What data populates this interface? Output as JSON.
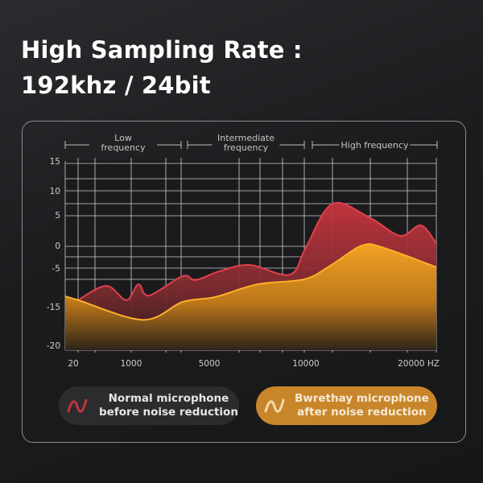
{
  "title_line1": "High Sampling Rate :",
  "title_line2": "192khz / 24bit",
  "chart_data": {
    "type": "area",
    "title": "",
    "xlabel": "",
    "ylabel": "",
    "x_unit": "HZ",
    "x_ticks": [
      20,
      1000,
      5000,
      10000,
      20000
    ],
    "x_tick_labels": [
      "20",
      "1000",
      "5000",
      "10000",
      "20000 HZ"
    ],
    "y_ticks": [
      15,
      10,
      5,
      0,
      -5,
      -15,
      -20
    ],
    "y_tick_labels": [
      "15",
      "10",
      "5",
      "0",
      "-5",
      "-15",
      "-20"
    ],
    "ylim": [
      -21,
      15
    ],
    "grid": true,
    "legend_position": "bottom",
    "regions": [
      {
        "label": "Low frequency",
        "lines": [
          "Low",
          "frequency"
        ]
      },
      {
        "label": "Intermediate frequency",
        "lines": [
          "Intermediate",
          "frequency"
        ]
      },
      {
        "label": "High frequency",
        "lines": [
          "High frequency"
        ]
      }
    ],
    "series": [
      {
        "name": "Normal microphone before noise reduction",
        "color": "#c0343f",
        "x": [
          20,
          540,
          911,
          1390,
          1957,
          3780,
          4480,
          5730,
          7240,
          9270,
          10160,
          12730,
          16400,
          19300,
          20940,
          22000
        ],
        "y": [
          -13.3,
          -9.6,
          -13.3,
          -9.2,
          -12.1,
          -7.1,
          -8.1,
          -5.8,
          -4.3,
          -6.7,
          -0.4,
          7.3,
          4.5,
          1.6,
          3.3,
          0.3
        ]
      },
      {
        "name": "Bwrethay microphone after noise reduction",
        "color": "#f4a524",
        "x": [
          0,
          20,
          1650,
          3780,
          5490,
          7640,
          10000,
          12500,
          15600,
          17700,
          22000
        ],
        "y": [
          -12.3,
          -13.3,
          -16.7,
          -13.75,
          -12.5,
          -9.2,
          -7.9,
          -4.5,
          0,
          -0.5,
          -4.8
        ]
      }
    ]
  },
  "legend": {
    "normal_line1": "Normal microphone",
    "normal_line2": "before noise reduction",
    "bwrethay_line1": "Bwrethay microphone",
    "bwrethay_line2": "after noise reduction",
    "normal_icon": "sine-wave-icon",
    "bwrethay_icon": "sine-wave-icon",
    "normal_color": "#c0343f",
    "bwrethay_color": "#c8852a"
  }
}
